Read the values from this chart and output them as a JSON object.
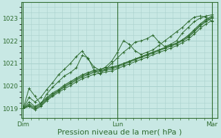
{
  "bg_color": "#c8e8e4",
  "grid_color": "#a8d0cc",
  "line_color": "#2d6a2d",
  "xlabel": "Pression niveau de la mer( hPa )",
  "xlabel_fontsize": 8,
  "tick_label_fontsize": 6.5,
  "day_labels": [
    "Dim",
    "Lun",
    "Mar"
  ],
  "day_positions": [
    0,
    48,
    96
  ],
  "ylim": [
    1018.6,
    1023.7
  ],
  "yticks": [
    1019,
    1020,
    1021,
    1022,
    1023
  ],
  "xlim": [
    -1,
    99
  ],
  "series": [
    [
      1019.0,
      1019.9,
      1019.55,
      1019.2,
      1019.65,
      1019.95,
      1020.2,
      1020.45,
      1020.6,
      1020.8,
      1021.35,
      1021.25,
      1020.7,
      1020.55,
      1020.75,
      1021.0,
      1021.25,
      1021.5,
      1021.7,
      1021.95,
      1022.0,
      1022.1,
      1022.25,
      1021.95,
      1021.75,
      1021.85,
      1022.0,
      1022.35,
      1022.6,
      1022.85,
      1023.0,
      1023.1,
      1023.15
    ],
    [
      1019.0,
      1019.5,
      1019.3,
      1019.5,
      1019.85,
      1020.15,
      1020.5,
      1020.75,
      1021.0,
      1021.3,
      1021.55,
      1021.2,
      1020.85,
      1020.7,
      1020.85,
      1021.1,
      1021.5,
      1022.0,
      1021.85,
      1021.55,
      1021.4,
      1021.5,
      1021.6,
      1021.8,
      1022.0,
      1022.2,
      1022.4,
      1022.6,
      1022.85,
      1023.05,
      1023.1,
      1023.05,
      1022.85
    ],
    [
      1019.0,
      1019.3,
      1019.1,
      1019.25,
      1019.5,
      1019.7,
      1019.85,
      1020.05,
      1020.2,
      1020.35,
      1020.5,
      1020.6,
      1020.7,
      1020.75,
      1020.8,
      1020.85,
      1020.9,
      1021.0,
      1021.1,
      1021.2,
      1021.3,
      1021.4,
      1021.5,
      1021.6,
      1021.7,
      1021.8,
      1021.9,
      1022.05,
      1022.25,
      1022.5,
      1022.75,
      1022.95,
      1023.1
    ],
    [
      1019.0,
      1019.2,
      1019.05,
      1019.2,
      1019.45,
      1019.65,
      1019.8,
      1020.0,
      1020.15,
      1020.3,
      1020.45,
      1020.55,
      1020.65,
      1020.7,
      1020.75,
      1020.8,
      1020.9,
      1021.0,
      1021.1,
      1021.2,
      1021.3,
      1021.4,
      1021.5,
      1021.6,
      1021.7,
      1021.8,
      1021.9,
      1022.05,
      1022.2,
      1022.45,
      1022.7,
      1022.9,
      1023.05
    ],
    [
      1019.0,
      1019.15,
      1019.0,
      1019.15,
      1019.4,
      1019.6,
      1019.78,
      1019.95,
      1020.1,
      1020.25,
      1020.4,
      1020.5,
      1020.6,
      1020.65,
      1020.7,
      1020.75,
      1020.85,
      1020.95,
      1021.06,
      1021.16,
      1021.26,
      1021.36,
      1021.46,
      1021.56,
      1021.66,
      1021.76,
      1021.86,
      1022.0,
      1022.15,
      1022.4,
      1022.65,
      1022.85,
      1023.0
    ],
    [
      1019.0,
      1019.1,
      1018.95,
      1019.1,
      1019.35,
      1019.55,
      1019.72,
      1019.88,
      1020.02,
      1020.18,
      1020.32,
      1020.42,
      1020.52,
      1020.57,
      1020.62,
      1020.67,
      1020.77,
      1020.88,
      1020.98,
      1021.08,
      1021.18,
      1021.28,
      1021.38,
      1021.48,
      1021.58,
      1021.68,
      1021.78,
      1021.92,
      1022.07,
      1022.3,
      1022.55,
      1022.75,
      1022.9
    ]
  ]
}
